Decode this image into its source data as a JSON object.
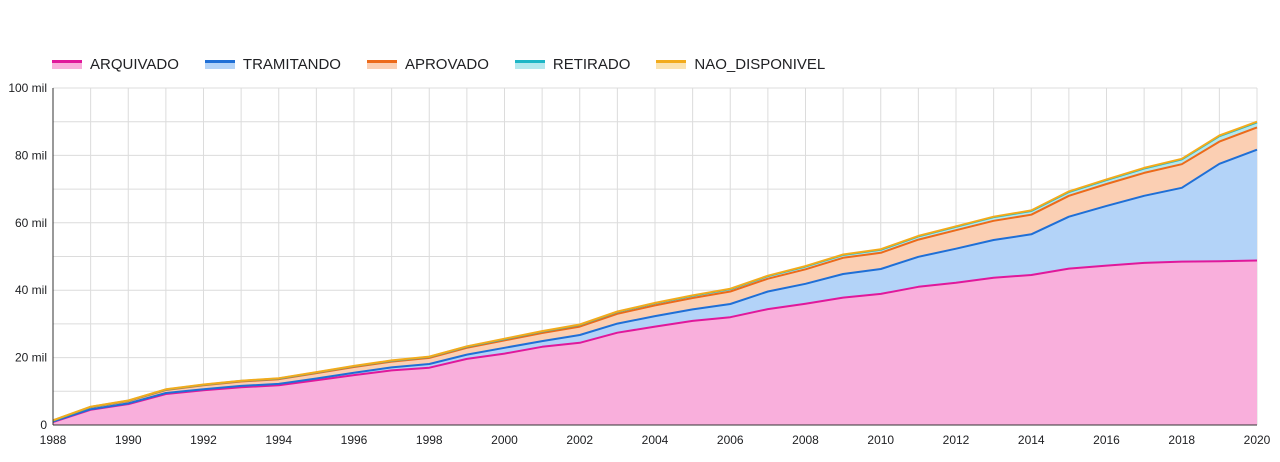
{
  "chart_data": {
    "type": "area",
    "stacked": true,
    "title": "",
    "xlabel": "",
    "ylabel": "",
    "legend_position": "top-left",
    "grid": true,
    "xlim": [
      1988,
      2020
    ],
    "ylim": [
      0,
      100000
    ],
    "x_ticks": [
      "1988",
      "1990",
      "1992",
      "1994",
      "1996",
      "1998",
      "2000",
      "2002",
      "2004",
      "2006",
      "2008",
      "2010",
      "2012",
      "2014",
      "2016",
      "2018",
      "2020"
    ],
    "y_ticks": [
      {
        "value": 0,
        "label": "0"
      },
      {
        "value": 20000,
        "label": "20 mil"
      },
      {
        "value": 40000,
        "label": "40 mil"
      },
      {
        "value": 60000,
        "label": "60 mil"
      },
      {
        "value": 80000,
        "label": "80 mil"
      },
      {
        "value": 100000,
        "label": "100 mil"
      }
    ],
    "x": [
      1988,
      1989,
      1990,
      1991,
      1992,
      1993,
      1994,
      1995,
      1996,
      1997,
      1998,
      1999,
      2000,
      2001,
      2002,
      2003,
      2004,
      2005,
      2006,
      2007,
      2008,
      2009,
      2010,
      2011,
      2012,
      2013,
      2014,
      2015,
      2016,
      2017,
      2018,
      2019,
      2020
    ],
    "series": [
      {
        "name": "ARQUIVADO",
        "line_color": "#e0189b",
        "fill_color": "#f9afdc",
        "values": [
          900,
          4500,
          6200,
          9200,
          10300,
          11200,
          11800,
          13300,
          14800,
          16200,
          17000,
          19600,
          21200,
          23200,
          24400,
          27400,
          29200,
          30900,
          32000,
          34400,
          36000,
          37800,
          38900,
          41000,
          42200,
          43700,
          44500,
          46400,
          47300,
          48100,
          48500,
          48600,
          48800
        ]
      },
      {
        "name": "TRAMITANDO",
        "line_color": "#1f6fd6",
        "fill_color": "#b3d3f8",
        "values": [
          100,
          200,
          200,
          300,
          300,
          400,
          400,
          500,
          700,
          900,
          1100,
          1300,
          1700,
          1700,
          2300,
          2700,
          3100,
          3400,
          3900,
          5200,
          5900,
          7000,
          7400,
          8900,
          10100,
          11200,
          12100,
          15400,
          17700,
          19900,
          21900,
          28900,
          32900
        ]
      },
      {
        "name": "APROVADO",
        "line_color": "#ec6a1a",
        "fill_color": "#fbcfb3",
        "values": [
          300,
          600,
          700,
          900,
          1200,
          1300,
          1400,
          1600,
          1700,
          1700,
          1800,
          2000,
          2200,
          2400,
          2500,
          2900,
          3200,
          3400,
          3700,
          3800,
          4300,
          4800,
          4800,
          5100,
          5500,
          5700,
          5800,
          6200,
          6500,
          6800,
          7000,
          6600,
          6600
        ]
      },
      {
        "name": "RETIRADO",
        "line_color": "#1db6c6",
        "fill_color": "#b3e8ee",
        "values": [
          50,
          80,
          100,
          120,
          150,
          180,
          200,
          220,
          250,
          280,
          300,
          350,
          400,
          450,
          500,
          550,
          600,
          650,
          700,
          750,
          800,
          850,
          900,
          950,
          1000,
          1050,
          1100,
          1150,
          1200,
          1300,
          1400,
          1600,
          1500
        ]
      },
      {
        "name": "NAO_DISPONIVEL",
        "line_color": "#f2ab1c",
        "fill_color": "#fbe3b0",
        "values": [
          50,
          50,
          60,
          60,
          70,
          70,
          80,
          80,
          90,
          90,
          100,
          100,
          110,
          110,
          120,
          120,
          130,
          130,
          140,
          140,
          150,
          150,
          160,
          160,
          170,
          170,
          180,
          180,
          190,
          190,
          200,
          200,
          210
        ]
      }
    ]
  }
}
